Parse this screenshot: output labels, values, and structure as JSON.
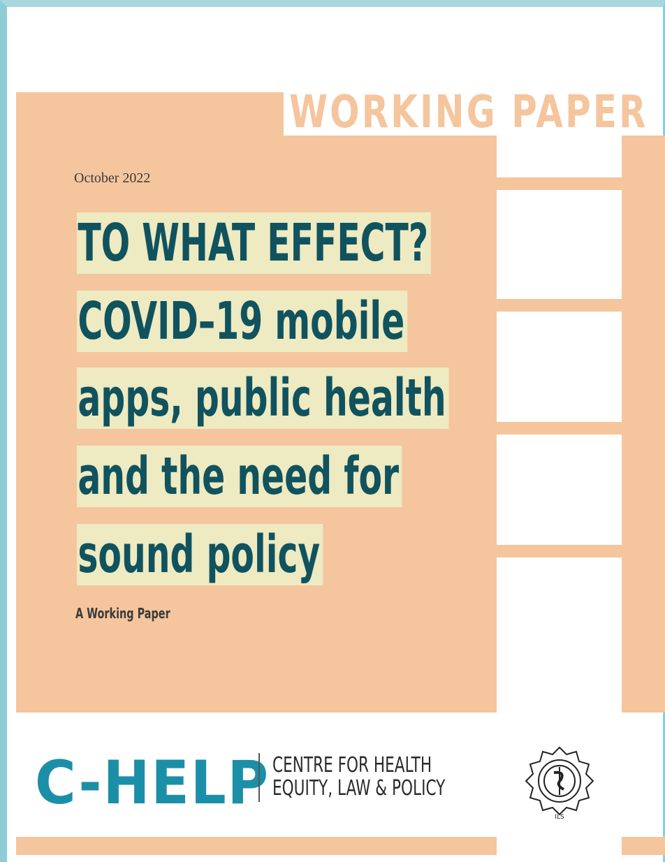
{
  "cover": {
    "header_label": "WORKING PAPER",
    "date": "October 2022",
    "title_lines": [
      "TO WHAT EFFECT?",
      "COVID–19 mobile",
      "apps, public health",
      "and the need for",
      "sound policy"
    ],
    "subtitle": "A Working Paper"
  },
  "footer": {
    "logo_text": "C-HELP",
    "org_lines": [
      "CENTRE FOR HEALTH",
      "EQUITY, LAW & POLICY"
    ],
    "emblem_caption": "ILS"
  },
  "colors": {
    "frame": "#8fcdd6",
    "peach": "#f5c59d",
    "title_text": "#10535f",
    "title_highlight": "#eeeac1",
    "logo": "#1c8fa8"
  }
}
